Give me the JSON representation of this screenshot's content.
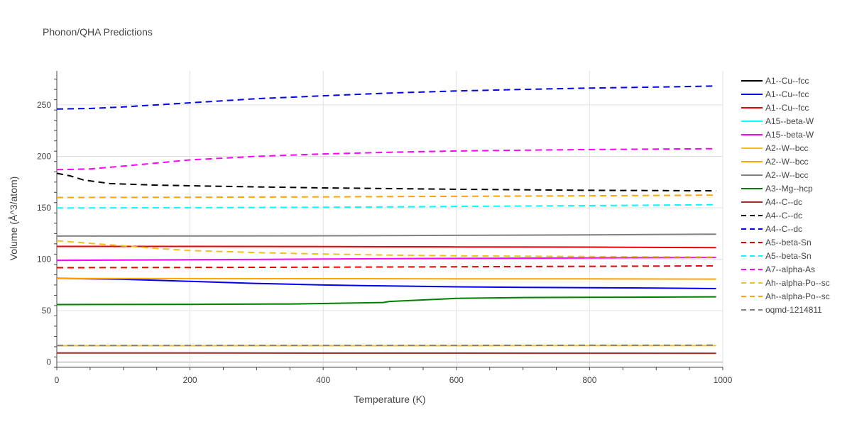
{
  "chart_data": {
    "type": "line",
    "title": "Phonon/QHA Predictions",
    "xlabel": "Temperature (K)",
    "ylabel": "Volume (Å^3/atom)",
    "xlim": [
      0,
      1000
    ],
    "ylim": [
      -5,
      283
    ],
    "xticks": [
      0,
      200,
      400,
      600,
      800,
      1000
    ],
    "yticks": [
      0,
      50,
      100,
      150,
      200,
      250
    ],
    "grid": true,
    "legend_position": "right",
    "series": [
      {
        "name": "A1--Cu--fcc",
        "color": "#000000",
        "dash": "solid",
        "x": [
          0,
          200,
          400,
          600,
          800,
          990
        ],
        "y": [
          null,
          null,
          null,
          null,
          null,
          null
        ]
      },
      {
        "name": "A1--Cu--fcc",
        "color": "#0000ee",
        "dash": "solid",
        "x": [
          0,
          100,
          200,
          300,
          400,
          500,
          600,
          700,
          800,
          900,
          990
        ],
        "y": [
          81.5,
          80.5,
          78.5,
          76.5,
          75.0,
          74.0,
          73.2,
          72.7,
          72.3,
          72.0,
          71.5
        ]
      },
      {
        "name": "A1--Cu--fcc",
        "color": "#ee0000",
        "dash": "solid",
        "x": [
          0,
          200,
          400,
          600,
          800,
          990
        ],
        "y": [
          112.5,
          112.5,
          112.3,
          112.0,
          111.8,
          111.2
        ]
      },
      {
        "name": "A15--beta-W",
        "color": "#00ffff",
        "dash": "solid",
        "x": [
          0,
          200,
          400,
          600,
          800,
          990
        ],
        "y": [
          null,
          null,
          null,
          null,
          null,
          null
        ]
      },
      {
        "name": "A15--beta-W",
        "color": "#ff00ff",
        "dash": "solid",
        "x": [
          0,
          200,
          400,
          600,
          800,
          990
        ],
        "y": [
          98.8,
          99.5,
          100.2,
          100.8,
          101.3,
          101.7
        ]
      },
      {
        "name": "A2--W--bcc",
        "color": "#f0c020",
        "dash": "solid",
        "x": [
          0,
          200,
          400,
          600,
          800,
          990
        ],
        "y": [
          16.0,
          16.0,
          16.0,
          16.0,
          16.1,
          16.1
        ]
      },
      {
        "name": "A2--W--bcc",
        "color": "#ffa500",
        "dash": "solid",
        "x": [
          0,
          200,
          400,
          600,
          800,
          990
        ],
        "y": [
          81.3,
          81.2,
          81.1,
          81.0,
          80.9,
          80.7
        ]
      },
      {
        "name": "A2--W--bcc",
        "color": "#808080",
        "dash": "solid",
        "x": [
          0,
          200,
          400,
          600,
          800,
          990
        ],
        "y": [
          122.5,
          122.6,
          122.8,
          123.2,
          123.7,
          124.3
        ]
      },
      {
        "name": "A3--Mg--hcp",
        "color": "#007f00",
        "dash": "solid",
        "x": [
          0,
          200,
          350,
          490,
          500,
          600,
          700,
          800,
          990
        ],
        "y": [
          56.0,
          56.2,
          56.5,
          58.0,
          59.0,
          62.0,
          62.8,
          63.0,
          63.5
        ]
      },
      {
        "name": "A4--C--dc",
        "color": "#a52a2a",
        "dash": "solid",
        "x": [
          0,
          200,
          400,
          600,
          800,
          990
        ],
        "y": [
          9.0,
          8.9,
          8.8,
          8.8,
          8.7,
          8.6
        ]
      },
      {
        "name": "A4--C--dc",
        "color": "#000000",
        "dash": "dash",
        "x": [
          0,
          20,
          40,
          80,
          150,
          250,
          400,
          600,
          800,
          990
        ],
        "y": [
          183.5,
          181.0,
          177.0,
          173.5,
          172.0,
          170.8,
          169.3,
          168.0,
          167.0,
          166.5
        ]
      },
      {
        "name": "A4--C--dc",
        "color": "#0000ee",
        "dash": "dash",
        "x": [
          0,
          50,
          100,
          200,
          300,
          400,
          500,
          600,
          700,
          800,
          900,
          990
        ],
        "y": [
          246.0,
          246.5,
          248.0,
          252.0,
          256.0,
          258.8,
          261.5,
          263.5,
          265.0,
          266.3,
          267.3,
          268.3
        ]
      },
      {
        "name": "A5--beta-Sn",
        "color": "#ee0000",
        "dash": "dash",
        "x": [
          0,
          200,
          400,
          600,
          800,
          990
        ],
        "y": [
          91.8,
          92.0,
          92.3,
          92.7,
          93.1,
          93.6
        ]
      },
      {
        "name": "A5--beta-Sn",
        "color": "#00ffff",
        "dash": "dash",
        "x": [
          0,
          200,
          400,
          600,
          800,
          990
        ],
        "y": [
          149.8,
          150.1,
          150.5,
          151.3,
          152.1,
          153.0
        ]
      },
      {
        "name": "A7--alpha-As",
        "color": "#ff00ff",
        "dash": "dash",
        "x": [
          0,
          50,
          100,
          150,
          200,
          300,
          400,
          500,
          600,
          700,
          800,
          900,
          990
        ],
        "y": [
          187.0,
          187.8,
          190.5,
          193.5,
          196.5,
          200.0,
          202.3,
          204.0,
          205.2,
          206.0,
          206.6,
          207.0,
          207.4
        ]
      },
      {
        "name": "Ah--alpha-Po--sc",
        "color": "#f0c020",
        "dash": "dash",
        "x": [
          0,
          50,
          100,
          150,
          200,
          300,
          400,
          500,
          600,
          800,
          990
        ],
        "y": [
          118.0,
          115.5,
          113.0,
          110.5,
          108.5,
          106.5,
          105.0,
          104.0,
          103.3,
          102.6,
          102.2
        ]
      },
      {
        "name": "Ah--alpha-Po--sc",
        "color": "#ffa500",
        "dash": "dash",
        "x": [
          0,
          200,
          400,
          600,
          800,
          990
        ],
        "y": [
          160.0,
          160.2,
          160.6,
          161.1,
          161.7,
          162.3
        ]
      },
      {
        "name": "oqmd-1214811",
        "color": "#808080",
        "dash": "dash",
        "x": [
          0,
          200,
          400,
          600,
          800,
          990
        ],
        "y": [
          16.2,
          16.2,
          16.3,
          16.3,
          16.4,
          16.5
        ]
      }
    ]
  }
}
